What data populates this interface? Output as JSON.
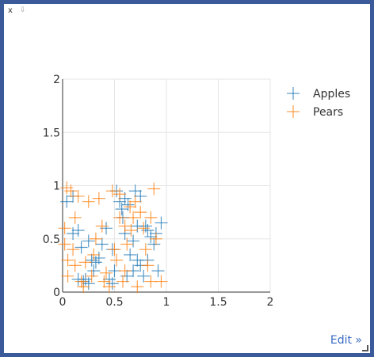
{
  "widget": {
    "close_label": "x",
    "pin_glyph": "⇩",
    "edit_label": "Edit »"
  },
  "chart_data": {
    "type": "scatter",
    "marker": "cross",
    "xlim": [
      0,
      2
    ],
    "ylim": [
      0,
      2
    ],
    "x_ticks": [
      "0",
      "0.5",
      "1",
      "1.5",
      "2"
    ],
    "y_ticks": [
      "0",
      "0.5",
      "1",
      "1.5",
      "2"
    ],
    "grid": true,
    "legend_position": "top-right",
    "series": [
      {
        "name": "Apples",
        "color": "#1f77b4",
        "points": [
          [
            0.04,
            0.85
          ],
          [
            0.1,
            0.55
          ],
          [
            0.15,
            0.58
          ],
          [
            0.18,
            0.42
          ],
          [
            0.2,
            0.1
          ],
          [
            0.22,
            0.12
          ],
          [
            0.25,
            0.08
          ],
          [
            0.28,
            0.3
          ],
          [
            0.3,
            0.2
          ],
          [
            0.32,
            0.28
          ],
          [
            0.38,
            0.45
          ],
          [
            0.42,
            0.6
          ],
          [
            0.45,
            0.12
          ],
          [
            0.48,
            0.08
          ],
          [
            0.5,
            0.2
          ],
          [
            0.52,
            0.95
          ],
          [
            0.55,
            0.85
          ],
          [
            0.57,
            0.78
          ],
          [
            0.58,
            0.7
          ],
          [
            0.6,
            0.55
          ],
          [
            0.6,
            0.88
          ],
          [
            0.63,
            0.82
          ],
          [
            0.65,
            0.35
          ],
          [
            0.68,
            0.48
          ],
          [
            0.7,
            0.95
          ],
          [
            0.72,
            0.3
          ],
          [
            0.72,
            0.62
          ],
          [
            0.75,
            0.25
          ],
          [
            0.78,
            0.15
          ],
          [
            0.8,
            0.62
          ],
          [
            0.82,
            0.58
          ],
          [
            0.85,
            0.52
          ],
          [
            0.88,
            0.45
          ],
          [
            0.9,
            0.55
          ],
          [
            0.92,
            0.2
          ],
          [
            0.95,
            0.65
          ],
          [
            0.1,
            0.9
          ],
          [
            0.15,
            0.12
          ],
          [
            0.35,
            0.32
          ],
          [
            0.62,
            0.15
          ],
          [
            0.48,
            0.4
          ],
          [
            0.68,
            0.2
          ],
          [
            0.75,
            0.9
          ],
          [
            0.82,
            0.3
          ],
          [
            0.25,
            0.48
          ]
        ]
      },
      {
        "name": "Pears",
        "color": "#ff7f0e",
        "points": [
          [
            0.02,
            0.6
          ],
          [
            0.04,
            0.98
          ],
          [
            0.05,
            0.3
          ],
          [
            0.08,
            0.95
          ],
          [
            0.1,
            0.4
          ],
          [
            0.12,
            0.25
          ],
          [
            0.15,
            0.9
          ],
          [
            0.18,
            0.1
          ],
          [
            0.2,
            0.05
          ],
          [
            0.25,
            0.85
          ],
          [
            0.3,
            0.35
          ],
          [
            0.35,
            0.88
          ],
          [
            0.4,
            0.1
          ],
          [
            0.42,
            0.18
          ],
          [
            0.45,
            0.05
          ],
          [
            0.48,
            0.95
          ],
          [
            0.5,
            0.4
          ],
          [
            0.55,
            0.7
          ],
          [
            0.55,
            0.92
          ],
          [
            0.58,
            0.1
          ],
          [
            0.6,
            0.62
          ],
          [
            0.62,
            0.45
          ],
          [
            0.65,
            0.8
          ],
          [
            0.68,
            0.7
          ],
          [
            0.7,
            0.85
          ],
          [
            0.72,
            0.05
          ],
          [
            0.75,
            0.75
          ],
          [
            0.78,
            0.6
          ],
          [
            0.8,
            0.4
          ],
          [
            0.82,
            0.25
          ],
          [
            0.85,
            0.1
          ],
          [
            0.88,
            0.97
          ],
          [
            0.9,
            0.5
          ],
          [
            0.95,
            0.1
          ],
          [
            0.05,
            0.15
          ],
          [
            0.12,
            0.7
          ],
          [
            0.22,
            0.28
          ],
          [
            0.28,
            0.15
          ],
          [
            0.38,
            0.62
          ],
          [
            0.52,
            0.3
          ],
          [
            0.6,
            0.2
          ],
          [
            0.66,
            0.58
          ],
          [
            0.85,
            0.7
          ],
          [
            0.02,
            0.45
          ],
          [
            0.32,
            0.5
          ]
        ]
      }
    ]
  }
}
